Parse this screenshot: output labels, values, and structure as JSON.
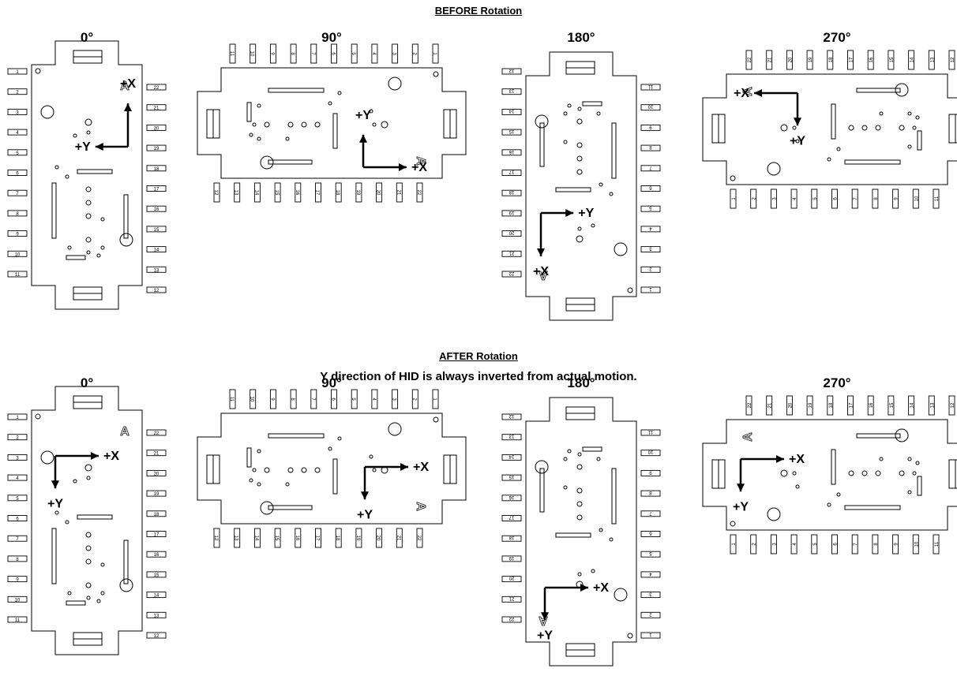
{
  "sections": [
    {
      "title": "BEFORE Rotation",
      "subtitle": "",
      "boards": [
        {
          "angle": "0°",
          "x_label": "+X",
          "y_label": "+Y",
          "x_dir": "up",
          "y_dir": "left"
        },
        {
          "angle": "90°",
          "x_label": "+X",
          "y_label": "+Y",
          "x_dir": "right",
          "y_dir": "up"
        },
        {
          "angle": "180°",
          "x_label": "+X",
          "y_label": "+Y",
          "x_dir": "down",
          "y_dir": "right"
        },
        {
          "angle": "270°",
          "x_label": "+X",
          "y_label": "+Y",
          "x_dir": "left",
          "y_dir": "down"
        }
      ]
    },
    {
      "title": "AFTER Rotation",
      "subtitle": "Y direction of HID is always inverted from actual motion.",
      "boards": [
        {
          "angle": "0°",
          "x_label": "+X",
          "y_label": "+Y",
          "x_dir": "right",
          "y_dir": "down"
        },
        {
          "angle": "90°",
          "x_label": "+X",
          "y_label": "+Y",
          "x_dir": "right",
          "y_dir": "down"
        },
        {
          "angle": "180°",
          "x_label": "+X",
          "y_label": "+Y",
          "x_dir": "right",
          "y_dir": "down"
        },
        {
          "angle": "270°",
          "x_label": "+X",
          "y_label": "+Y",
          "x_dir": "right",
          "y_dir": "down"
        }
      ]
    }
  ],
  "pins": {
    "left": [
      "1",
      "2",
      "3",
      "4",
      "5",
      "6",
      "7",
      "8",
      "9",
      "10",
      "11"
    ],
    "right": [
      "22",
      "21",
      "20",
      "19",
      "18",
      "17",
      "16",
      "15",
      "14",
      "13",
      "12"
    ]
  },
  "colors": {
    "ink": "#000000",
    "background": "#ffffff"
  }
}
